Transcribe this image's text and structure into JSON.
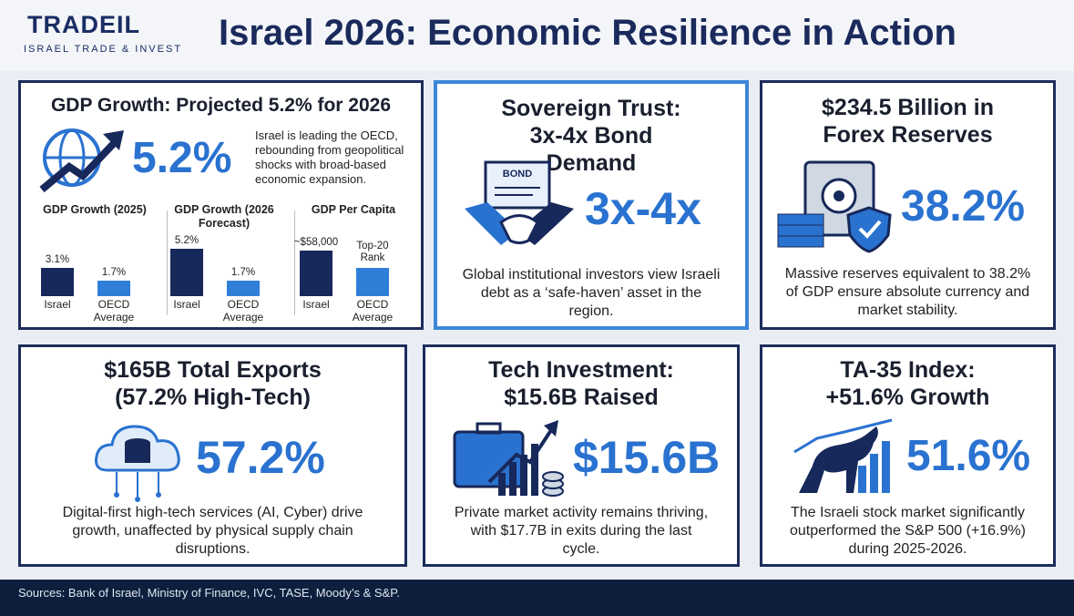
{
  "header": {
    "logo": "TRADEIL",
    "logo_tagline": "ISRAEL TRADE & INVEST",
    "title": "Israel 2026: Economic Resilience in Action"
  },
  "gdp_card": {
    "title": "GDP Growth: Projected 5.2% for 2026",
    "big_value": "5.2%",
    "description": "Israel is leading the OECD, rebounding from geopolitical shocks with broad-based economic expansion.",
    "charts": [
      {
        "type": "bar",
        "title": "GDP Growth (2025)",
        "categories": [
          "Israel",
          "OECD Average"
        ],
        "values": [
          3.1,
          1.7
        ],
        "value_labels": [
          "3.1%",
          "1.7%"
        ],
        "colors": [
          "#17285a",
          "#2f7fd8"
        ],
        "ylim": [
          0,
          6
        ]
      },
      {
        "type": "bar",
        "title": "GDP Growth (2026 Forecast)",
        "categories": [
          "Israel",
          "OECD Average"
        ],
        "values": [
          5.2,
          1.7
        ],
        "value_labels": [
          "5.2%",
          "1.7%"
        ],
        "colors": [
          "#17285a",
          "#2f7fd8"
        ],
        "ylim": [
          0,
          6
        ]
      },
      {
        "type": "bar",
        "title": "GDP Per Capita",
        "categories": [
          "Israel",
          "OECD Average"
        ],
        "values": [
          58000,
          36000
        ],
        "value_labels": [
          "~$58,000",
          null
        ],
        "annotation": "Top-20 Rank",
        "colors": [
          "#17285a",
          "#2f7fd8"
        ],
        "ylim": [
          0,
          70000
        ]
      }
    ]
  },
  "cards": [
    {
      "title": "Sovereign Trust: 3x-4x Bond Demand",
      "icon_label": "BOND",
      "big_value": "3x-4x",
      "description": "Global institutional investors view Israeli debt as a ‘safe-haven’ asset in the region."
    },
    {
      "title": "$234.5 Billion in Forex Reserves",
      "big_value": "38.2%",
      "description": "Massive reserves equivalent to 38.2% of GDP ensure absolute currency and market stability."
    },
    {
      "title": "$165B Total Exports (57.2% High-Tech)",
      "big_value": "57.2%",
      "description": "Digital-first high-tech services (AI, Cyber) drive growth, unaffected by physical supply chain disruptions."
    },
    {
      "title": "Tech Investment: $15.6B Raised",
      "big_value": "$15.6B",
      "description": "Private market activity remains thriving, with $17.7B in exits during the last cycle."
    },
    {
      "title": "TA-35 Index: +51.6% Growth",
      "big_value": "51.6%",
      "description": "The Israeli stock market significantly outperformed the S&P 500 (+16.9%) during 2025-2026."
    }
  ],
  "footer": {
    "sources": "Sources: Bank of Israel, Ministry of Finance, IVC, TASE, Moody’s & S&P."
  }
}
